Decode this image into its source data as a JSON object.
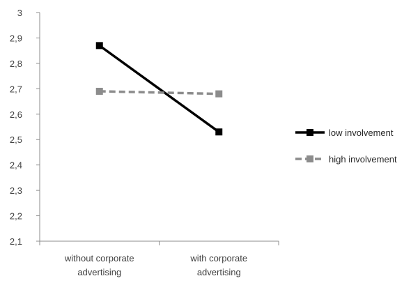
{
  "chart_data": {
    "type": "line",
    "categories": [
      [
        "without corporate",
        "advertising"
      ],
      [
        "with corporate",
        "advertising"
      ]
    ],
    "series": [
      {
        "name": "low involvement",
        "values": [
          2.87,
          2.53
        ],
        "color": "#000000",
        "dash": "solid"
      },
      {
        "name": "high involvement",
        "values": [
          2.69,
          2.68
        ],
        "color": "#8c8c8c",
        "dash": "dashed"
      }
    ],
    "ylim": [
      2.1,
      3.0
    ],
    "yticks": [
      "2,1",
      "2,2",
      "2,3",
      "2,4",
      "2,5",
      "2,6",
      "2,7",
      "2,8",
      "2,9",
      "3"
    ],
    "grid": false,
    "legend": "right",
    "title": "",
    "xlabel": "",
    "ylabel": ""
  }
}
